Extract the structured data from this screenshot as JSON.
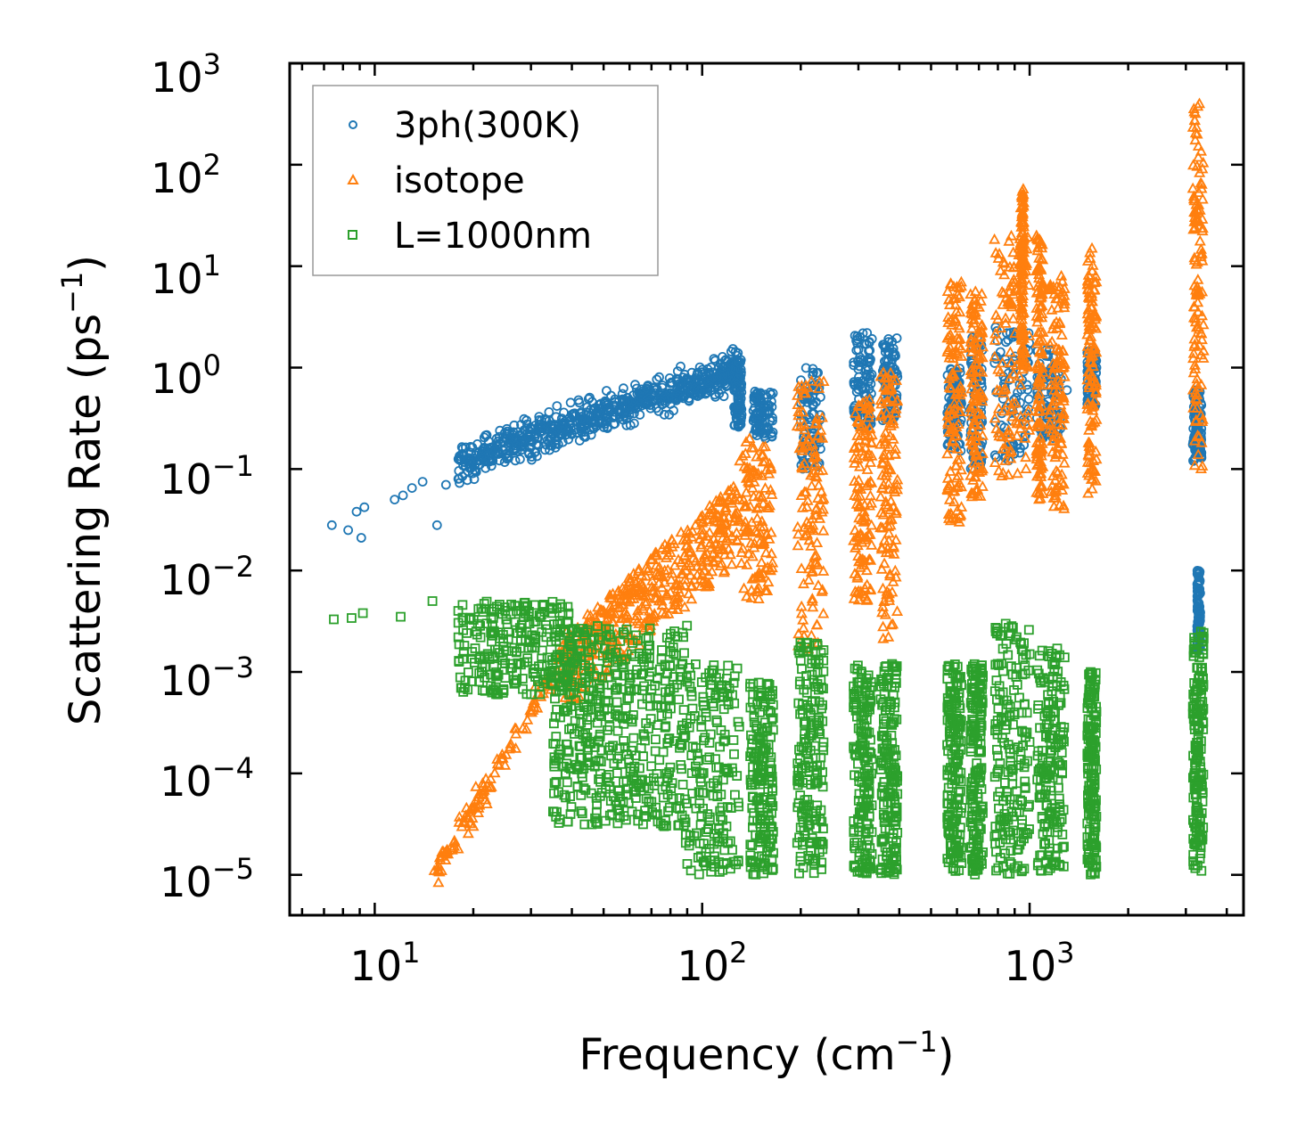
{
  "chart_data": {
    "type": "scatter",
    "title": "",
    "xlabel": "Frequency (cm",
    "xlabel_sup": "−1",
    "xlabel_end": ")",
    "ylabel": "Scattering Rate (ps",
    "ylabel_sup": "−1",
    "ylabel_end": ")",
    "xscale": "log",
    "yscale": "log",
    "xlim": [
      5.5,
      4500
    ],
    "ylim": [
      4e-06,
      1000
    ],
    "x_ticks": [
      {
        "base": "10",
        "exp": "1",
        "value": 10
      },
      {
        "base": "10",
        "exp": "2",
        "value": 100
      },
      {
        "base": "10",
        "exp": "3",
        "value": 1000
      }
    ],
    "y_ticks": [
      {
        "base": "10",
        "exp": "3",
        "value": 1000
      },
      {
        "base": "10",
        "exp": "2",
        "value": 100
      },
      {
        "base": "10",
        "exp": "1",
        "value": 10
      },
      {
        "base": "10",
        "exp": "0",
        "value": 1
      },
      {
        "base": "10",
        "exp": "−1",
        "value": 0.1
      },
      {
        "base": "10",
        "exp": "−2",
        "value": 0.01
      },
      {
        "base": "10",
        "exp": "−3",
        "value": 0.001
      },
      {
        "base": "10",
        "exp": "−4",
        "value": 0.0001
      },
      {
        "base": "10",
        "exp": "−5",
        "value": 1e-05
      }
    ],
    "legend_position": "top-left",
    "series": [
      {
        "name": "3ph(300K)",
        "marker": "circle",
        "color": "#1f77b4",
        "sample_points": [
          [
            7.4,
            0.028
          ],
          [
            8.3,
            0.025
          ],
          [
            8.8,
            0.038
          ],
          [
            9.1,
            0.021
          ],
          [
            9.3,
            0.042
          ],
          [
            11.5,
            0.05
          ],
          [
            12.2,
            0.055
          ],
          [
            13.0,
            0.065
          ],
          [
            14.0,
            0.075
          ],
          [
            15.5,
            0.028
          ],
          [
            16.5,
            0.07
          ],
          [
            18.0,
            0.08
          ],
          [
            20,
            0.12
          ],
          [
            22,
            0.15
          ],
          [
            25,
            0.2
          ],
          [
            30,
            0.22
          ],
          [
            35,
            0.25
          ],
          [
            40,
            0.22
          ],
          [
            50,
            0.35
          ],
          [
            60,
            0.45
          ],
          [
            70,
            0.55
          ],
          [
            80,
            0.7
          ],
          [
            100,
            0.9
          ],
          [
            120,
            1.0
          ],
          [
            150,
            0.5
          ],
          [
            200,
            0.6
          ],
          [
            300,
            1.5
          ],
          [
            380,
            1.8
          ],
          [
            600,
            0.8
          ],
          [
            900,
            1.2
          ],
          [
            1300,
            0.6
          ],
          [
            1600,
            1.0
          ],
          [
            3200,
            0.3
          ],
          [
            3300,
            0.003
          ]
        ]
      },
      {
        "name": "isotope",
        "marker": "triangle",
        "color": "#ff7f0e",
        "sample_points": [
          [
            15.2,
            1.1e-05
          ],
          [
            16,
            1.1e-05
          ],
          [
            18,
            1.8e-05
          ],
          [
            20,
            3e-05
          ],
          [
            22,
            5e-05
          ],
          [
            25,
            0.00012
          ],
          [
            30,
            0.0004
          ],
          [
            35,
            0.0009
          ],
          [
            40,
            0.002
          ],
          [
            50,
            0.004
          ],
          [
            60,
            0.006
          ],
          [
            80,
            0.015
          ],
          [
            100,
            0.025
          ],
          [
            130,
            0.05
          ],
          [
            160,
            0.09
          ],
          [
            220,
            0.15
          ],
          [
            300,
            0.3
          ],
          [
            380,
            0.5
          ],
          [
            600,
            1.0
          ],
          [
            800,
            3.0
          ],
          [
            950,
            50
          ],
          [
            1050,
            20
          ],
          [
            1250,
            8
          ],
          [
            1550,
            15
          ],
          [
            3250,
            200
          ],
          [
            3300,
            400
          ]
        ]
      },
      {
        "name": "L=1000nm",
        "marker": "square",
        "color": "#2ca02c",
        "sample_points": [
          [
            7.5,
            0.0033
          ],
          [
            8.5,
            0.0034
          ],
          [
            9.2,
            0.0038
          ],
          [
            12,
            0.0035
          ],
          [
            15,
            0.005
          ],
          [
            18,
            0.004
          ],
          [
            22,
            0.003
          ],
          [
            28,
            0.0025
          ],
          [
            35,
            0.0012
          ],
          [
            45,
            0.0008
          ],
          [
            55,
            0.0007
          ],
          [
            70,
            0.001
          ],
          [
            90,
            0.0008
          ],
          [
            110,
            0.0006
          ],
          [
            150,
            0.0004
          ],
          [
            220,
            0.0003
          ],
          [
            310,
            0.0002
          ],
          [
            380,
            0.0003
          ],
          [
            600,
            0.0003
          ],
          [
            900,
            0.0004
          ],
          [
            1000,
            0.0015
          ],
          [
            1250,
            0.0002
          ],
          [
            1550,
            0.0001
          ],
          [
            3250,
            0.0002
          ]
        ]
      }
    ]
  }
}
